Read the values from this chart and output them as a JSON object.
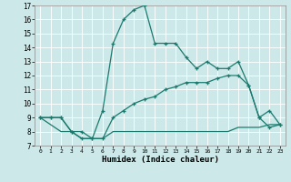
{
  "xlabel": "Humidex (Indice chaleur)",
  "bg_color": "#cce8e8",
  "grid_color": "#ffffff",
  "line_color": "#1a7a6e",
  "xlim": [
    -0.5,
    23.5
  ],
  "ylim": [
    7,
    17
  ],
  "xticks": [
    0,
    1,
    2,
    3,
    4,
    5,
    6,
    7,
    8,
    9,
    10,
    11,
    12,
    13,
    14,
    15,
    16,
    17,
    18,
    19,
    20,
    21,
    22,
    23
  ],
  "yticks": [
    7,
    8,
    9,
    10,
    11,
    12,
    13,
    14,
    15,
    16,
    17
  ],
  "line1_x": [
    0,
    1,
    2,
    3,
    4,
    5,
    6,
    7,
    8,
    9,
    10,
    11,
    12,
    13,
    14,
    15,
    16,
    17,
    18,
    19,
    20,
    21,
    22,
    23
  ],
  "line1_y": [
    9,
    9,
    9,
    8,
    8,
    7.5,
    9.5,
    14.3,
    16.0,
    16.7,
    17.0,
    14.3,
    14.3,
    14.3,
    13.3,
    12.5,
    13.0,
    12.5,
    12.5,
    13.0,
    11.3,
    9.0,
    9.5,
    8.5
  ],
  "line2_x": [
    0,
    1,
    2,
    3,
    4,
    5,
    6,
    7,
    8,
    9,
    10,
    11,
    12,
    13,
    14,
    15,
    16,
    17,
    18,
    19,
    20,
    21,
    22,
    23
  ],
  "line2_y": [
    9,
    9,
    9,
    8,
    7.5,
    7.5,
    7.5,
    9.0,
    9.5,
    10.0,
    10.3,
    10.5,
    11.0,
    11.2,
    11.5,
    11.5,
    11.5,
    11.8,
    12.0,
    12.0,
    11.3,
    9.0,
    8.3,
    8.5
  ],
  "line3_x": [
    0,
    2,
    3,
    4,
    5,
    6,
    7,
    8,
    9,
    10,
    11,
    12,
    13,
    14,
    15,
    16,
    17,
    18,
    19,
    20,
    21,
    22,
    23
  ],
  "line3_y": [
    9.0,
    8.0,
    8.0,
    7.5,
    7.5,
    7.5,
    8.0,
    8.0,
    8.0,
    8.0,
    8.0,
    8.0,
    8.0,
    8.0,
    8.0,
    8.0,
    8.0,
    8.0,
    8.3,
    8.3,
    8.3,
    8.5,
    8.5
  ]
}
